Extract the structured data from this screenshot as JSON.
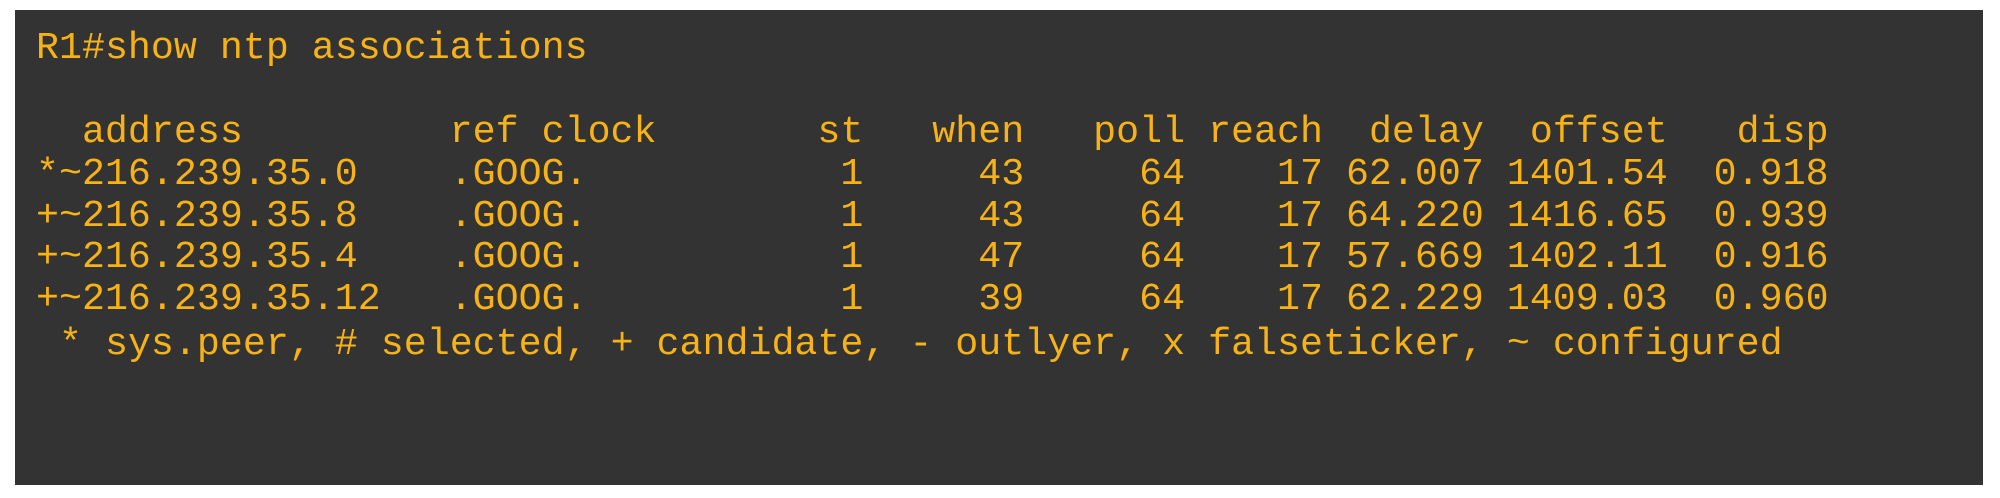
{
  "terminal": {
    "command_line": "R1#show ntp associations",
    "text_color": "#f7b216",
    "background_color": "#333333",
    "columns": [
      "address",
      "ref clock",
      "st",
      "when",
      "poll",
      "reach",
      "delay",
      "offset",
      "disp"
    ],
    "rows": [
      {
        "address": "*~216.239.35.0",
        "ref_clock": ".GOOG.",
        "st": "1",
        "when": "43",
        "poll": "64",
        "reach": "17",
        "delay": "62.007",
        "offset": "1401.54",
        "disp": "0.918"
      },
      {
        "address": "+~216.239.35.8",
        "ref_clock": ".GOOG.",
        "st": "1",
        "when": "43",
        "poll": "64",
        "reach": "17",
        "delay": "64.220",
        "offset": "1416.65",
        "disp": "0.939"
      },
      {
        "address": "+~216.239.35.4",
        "ref_clock": ".GOOG.",
        "st": "1",
        "when": "47",
        "poll": "64",
        "reach": "17",
        "delay": "57.669",
        "offset": "1402.11",
        "disp": "0.916"
      },
      {
        "address": "+~216.239.35.12",
        "ref_clock": ".GOOG.",
        "st": "1",
        "when": "39",
        "poll": "64",
        "reach": "17",
        "delay": "62.229",
        "offset": "1409.03",
        "disp": "0.960"
      }
    ],
    "legend": "* sys.peer, # selected, + candidate, - outlyer, x falseticker, ~ configured"
  }
}
